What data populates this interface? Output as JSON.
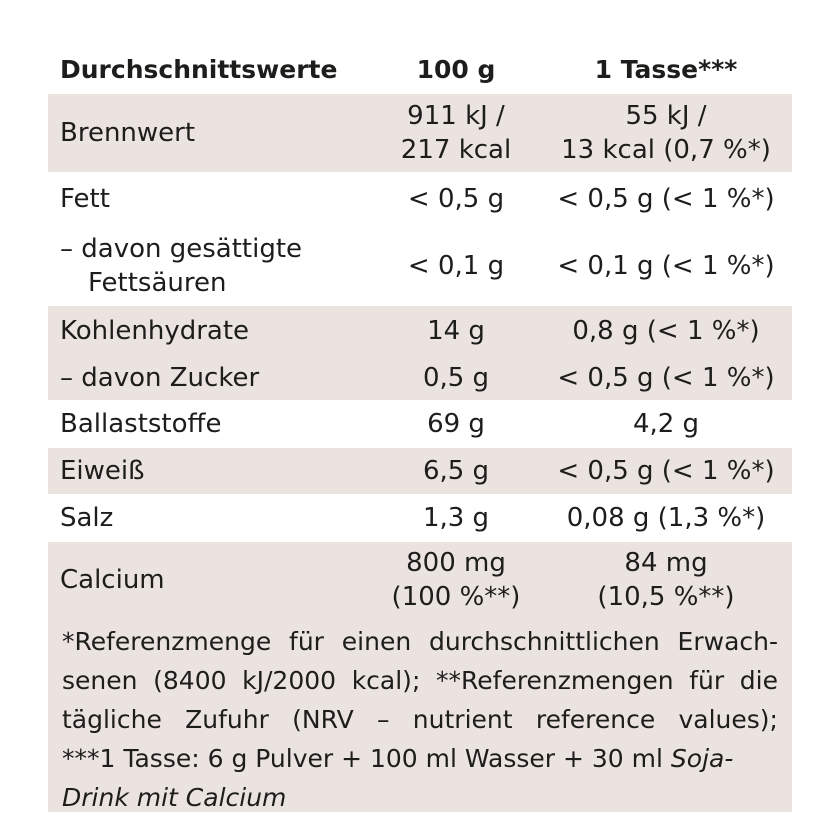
{
  "header": {
    "col1": "Durchschnittswerte",
    "col2": "100 g",
    "col3": "1 Tasse***"
  },
  "rows": [
    {
      "name": "Brennwert",
      "v100_l1": "911 kJ /",
      "v100_l2": "217 kcal",
      "vcup_l1": "55 kJ /",
      "vcup_l2": "13 kcal (0,7 %*)"
    },
    {
      "name": "Fett",
      "v100": "< 0,5 g",
      "vcup": "< 0,5 g (< 1 %*)"
    },
    {
      "name_l1": "– davon gesättigte",
      "name_l2": "Fettsäuren",
      "v100": "< 0,1 g",
      "vcup": "< 0,1 g (< 1 %*)"
    },
    {
      "name": "Kohlenhydrate",
      "v100": "14 g",
      "vcup": "0,8 g (< 1 %*)"
    },
    {
      "name": "– davon Zucker",
      "v100": "0,5 g",
      "vcup": "< 0,5 g (< 1 %*)"
    },
    {
      "name": "Ballaststoffe",
      "v100": "69 g",
      "vcup": "4,2 g"
    },
    {
      "name": "Eiweiß",
      "v100": "6,5 g",
      "vcup": "< 0,5 g (< 1 %*)"
    },
    {
      "name": "Salz",
      "v100": "1,3 g",
      "vcup": "0,08 g (1,3 %*)"
    },
    {
      "name": "Calcium",
      "v100_l1": "800 mg",
      "v100_l2": "(100 %**)",
      "vcup_l1": "84 mg",
      "vcup_l2": "(10,5 %**)"
    }
  ],
  "footnote": {
    "line1": "*Referenzmenge für einen durchschnittlichen Erwach-",
    "line2": "senen (8400 kJ/2000 kcal); **Referenzmengen für die",
    "line3": "tägliche Zufuhr (NRV – nutrient reference values);",
    "line4_plain": "***1 Tasse: 6 g Pulver + 100 ml Wasser + 30 ml ",
    "line4_italic": "Soja-",
    "line5_italic": "Drink mit Calcium"
  }
}
